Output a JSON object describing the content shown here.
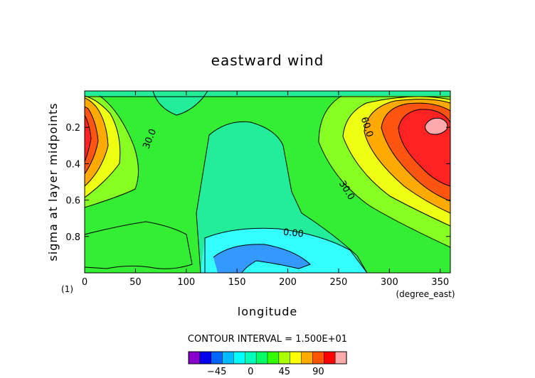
{
  "chart_data": {
    "type": "contour",
    "title": "eastward wind",
    "xlabel": "longitude",
    "ylabel": "sigma at layer midpoints",
    "x_unit": "(degree_east)",
    "y_marker": "(1)",
    "x_ticks": [
      0,
      50,
      100,
      150,
      200,
      250,
      300,
      350
    ],
    "y_ticks": [
      0.2,
      0.4,
      0.6,
      0.8
    ],
    "xlim": [
      0,
      360
    ],
    "ylim_top_to_bottom": [
      0.0,
      1.0
    ],
    "contour_interval_text": "CONTOUR INTERVAL = 1.500E+01",
    "contour_labels": [
      "30.0",
      "60.0",
      "30.0",
      "0.00"
    ],
    "colorbar": {
      "tick_labels": [
        "−45",
        "0",
        "45",
        "90"
      ],
      "colors": [
        "#8800cc",
        "#0000ee",
        "#0066ff",
        "#00bbff",
        "#00ffff",
        "#00ffbb",
        "#00ff66",
        "#33ff00",
        "#aaff00",
        "#ffff00",
        "#ffaa00",
        "#ff5500",
        "#ff0000",
        "#ffaaaa"
      ]
    },
    "fill_colors": {
      "cyan": "#33ffff",
      "teal": "#22ee99",
      "green": "#33ee33",
      "lime": "#88ff22",
      "yellow": "#eeff11",
      "orange": "#ffaa00",
      "red_orange": "#ff5511",
      "red": "#ff2222",
      "pink": "#ffaaaa",
      "blue": "#3399ff"
    }
  }
}
